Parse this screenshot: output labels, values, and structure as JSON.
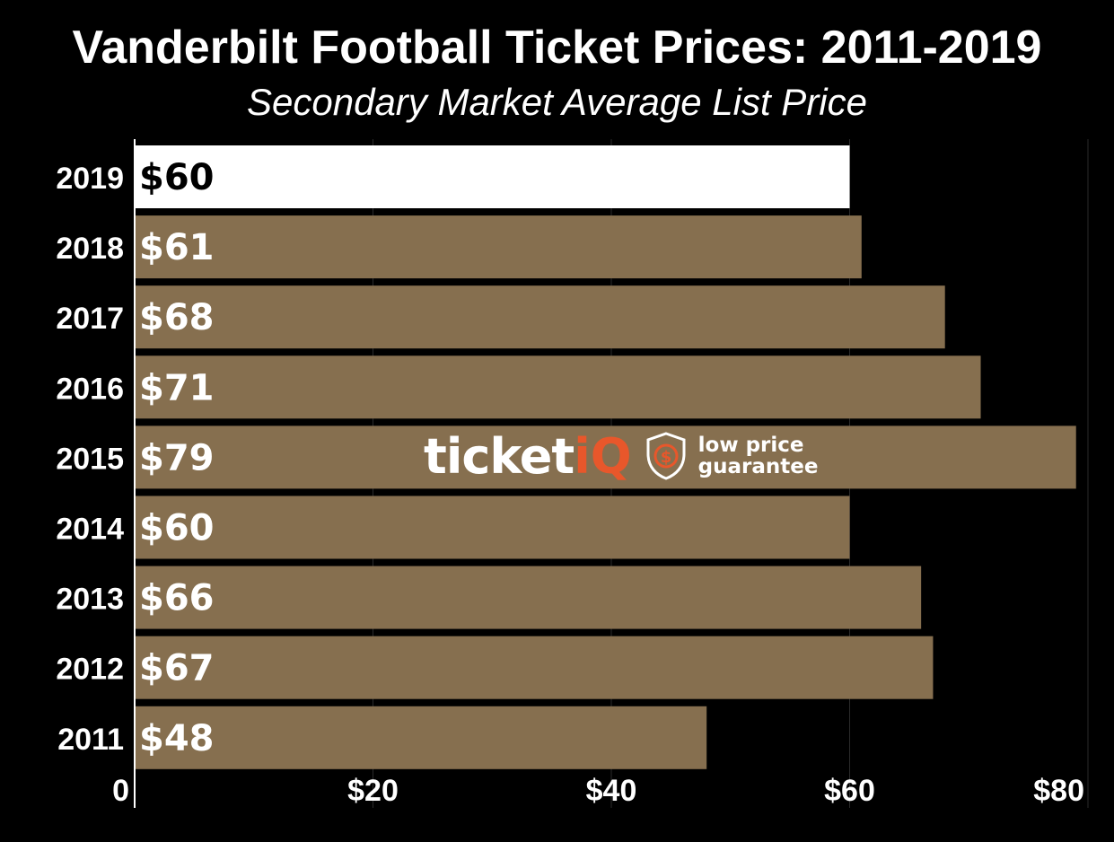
{
  "title": "Vanderbilt Football Ticket Prices: 2011-2019",
  "subtitle": "Secondary Market Average List Price",
  "watermark": {
    "brand": "ticket",
    "brand_accent": "iQ",
    "tagline_line1": "low price",
    "tagline_line2": "guarantee",
    "accent_color": "#e8572b"
  },
  "colors": {
    "background": "#000000",
    "bar": "#866f4f",
    "highlight_bar": "#ffffff",
    "label_on_bar": "#ffffff",
    "label_on_highlight": "#000000",
    "gridline": "#2a2a2a"
  },
  "chart_data": {
    "type": "bar",
    "orientation": "horizontal",
    "categories": [
      "2019",
      "2018",
      "2017",
      "2016",
      "2015",
      "2014",
      "2013",
      "2012",
      "2011"
    ],
    "values": [
      60,
      61,
      68,
      71,
      79,
      60,
      66,
      67,
      48
    ],
    "data_labels": [
      "$60",
      "$61",
      "$68",
      "$71",
      "$79",
      "$60",
      "$66",
      "$67",
      "$48"
    ],
    "highlight_index": 0,
    "xlim": [
      0,
      80
    ],
    "xticks": [
      0,
      20,
      40,
      60,
      80
    ],
    "xtick_labels": [
      "0",
      "$20",
      "$40",
      "$60",
      "$80"
    ],
    "title": "Vanderbilt Football Ticket Prices: 2011-2019",
    "subtitle": "Secondary Market Average List Price",
    "xlabel": "",
    "ylabel": "",
    "grid": true
  }
}
